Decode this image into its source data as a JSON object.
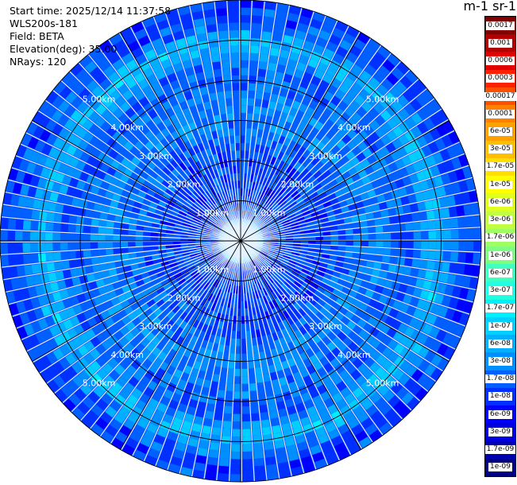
{
  "header": {
    "start_time": "Start time: 2025/12/14 11:37:58",
    "instrument": "WLS200s-181",
    "field": "Field: BETA",
    "elevation": "Elevation(deg): 35.00",
    "nrays": "NRays: 120"
  },
  "colorbar": {
    "title": "m-1 sr-1",
    "labels": [
      "0.0017",
      "0.001",
      "0.0006",
      "0.0003",
      "0.00017",
      "0.0001",
      "6e-05",
      "3e-05",
      "1.7e-05",
      "1e-05",
      "6e-06",
      "3e-06",
      "1.7e-06",
      "1e-06",
      "6e-07",
      "3e-07",
      "1.7e-07",
      "1e-07",
      "6e-08",
      "3e-08",
      "1.7e-08",
      "1e-08",
      "6e-09",
      "3e-09",
      "1.7e-09",
      "1e-09"
    ],
    "colors": [
      "#800000",
      "#b00000",
      "#e00000",
      "#ff2000",
      "#ff5000",
      "#ff7f00",
      "#ff9f00",
      "#ffbf00",
      "#ffdf00",
      "#ffff00",
      "#dfff20",
      "#bfff40",
      "#9fff60",
      "#7fff80",
      "#40ffbf",
      "#20ffdf",
      "#00efff",
      "#00cfff",
      "#00afff",
      "#008fff",
      "#0060ff",
      "#0030ff",
      "#0000ff",
      "#0000df",
      "#0000b0",
      "#000080"
    ]
  },
  "chart_data": {
    "type": "ppi",
    "title": "",
    "field": "BETA",
    "elevation_deg": 35.0,
    "n_rays": 120,
    "range_rings_km": [
      1.0,
      2.0,
      3.0,
      4.0,
      5.0,
      6.0
    ],
    "range_ring_labels": [
      "1.00km",
      "2.00km",
      "3.00km",
      "4.00km",
      "5.00km"
    ],
    "max_range_km": 6.0,
    "colorscale": "log10, 1e-09 to 0.0017 m-1 sr-1",
    "dominant_value_range": "1e-08 to 3e-07"
  }
}
